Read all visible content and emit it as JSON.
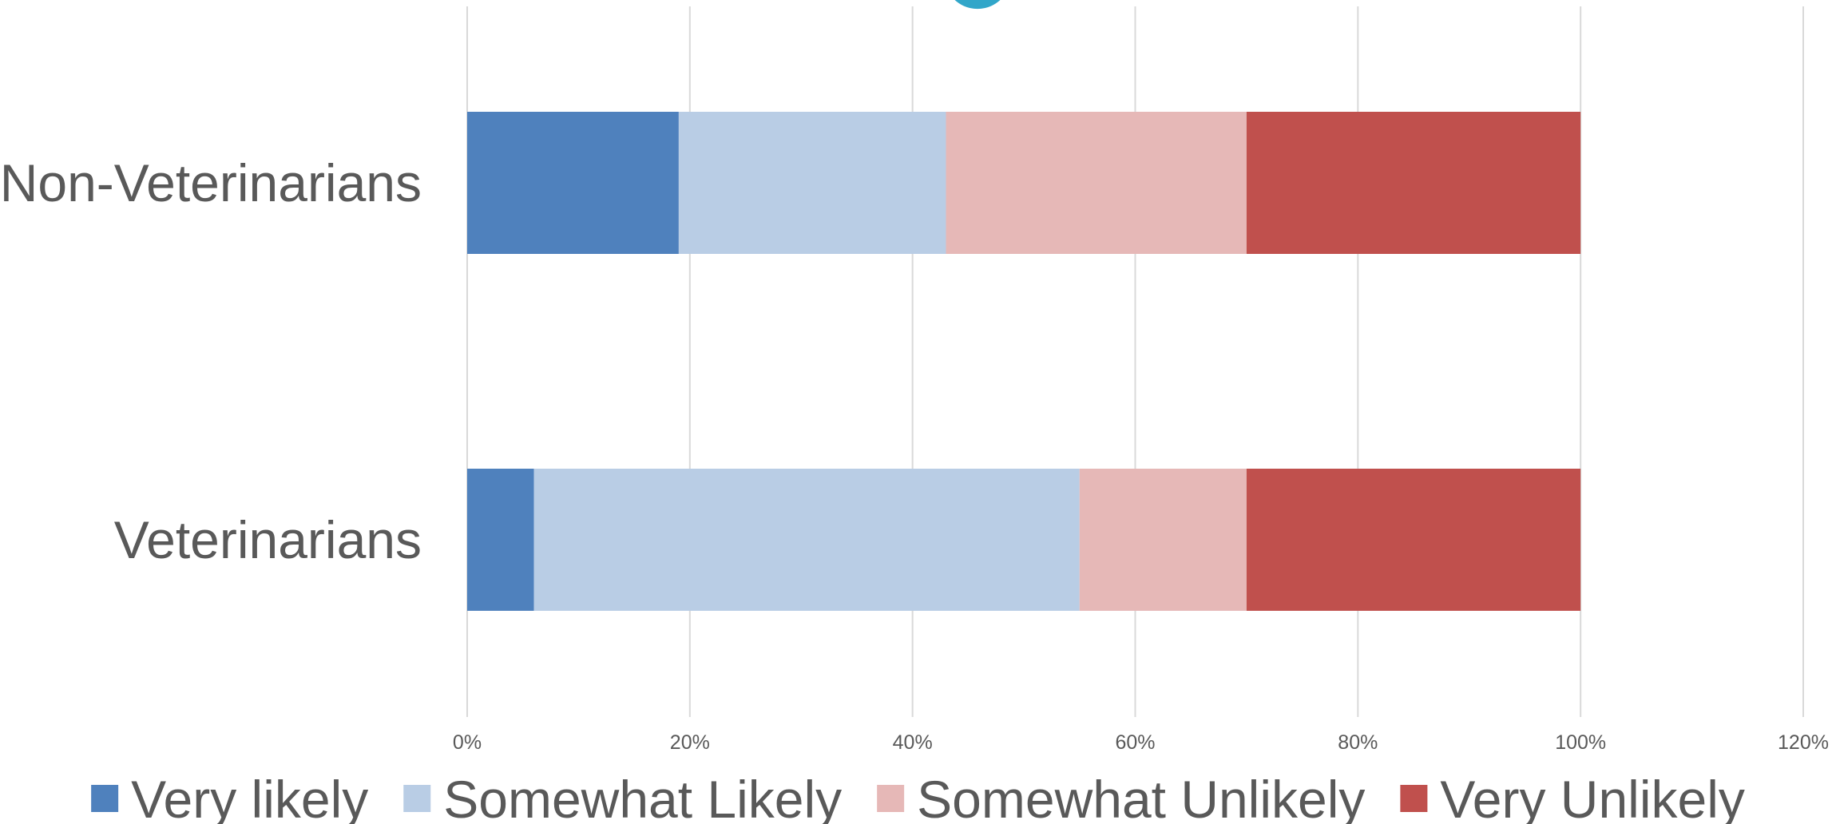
{
  "chart_data": {
    "type": "bar",
    "orientation": "horizontal",
    "stacked": true,
    "categories": [
      "Non-Veterinarians",
      "Veterinarians"
    ],
    "series": [
      {
        "name": "Very likely",
        "color": "#4f81bd",
        "values": [
          0.19,
          0.06
        ]
      },
      {
        "name": "Somewhat Likely",
        "color": "#b9cde5",
        "values": [
          0.24,
          0.49
        ]
      },
      {
        "name": "Somewhat Unlikely",
        "color": "#e6b8b7",
        "values": [
          0.27,
          0.15
        ]
      },
      {
        "name": "Very Unlikely",
        "color": "#c0504d",
        "values": [
          0.3,
          0.3
        ]
      }
    ],
    "xlim": [
      0,
      1.2
    ],
    "xticks": [
      0,
      0.2,
      0.4,
      0.6,
      0.8,
      1.0,
      1.2
    ],
    "xtick_labels": [
      "0%",
      "20%",
      "40%",
      "60%",
      "80%",
      "100%",
      "120%"
    ],
    "grid": "vertical",
    "legend_position": "bottom",
    "title": "",
    "xlabel": "",
    "ylabel": "",
    "decorations": {
      "partial_circle_color": "#31a6c9"
    }
  }
}
